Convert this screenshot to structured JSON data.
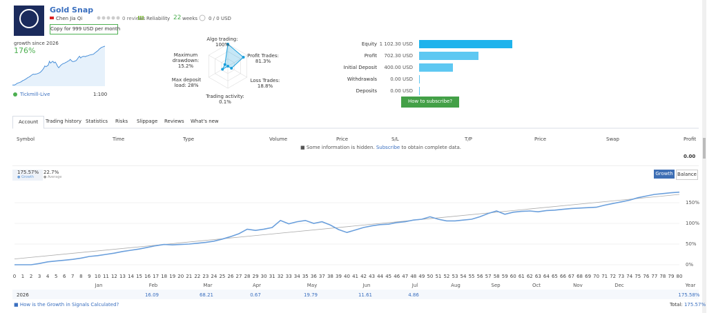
{
  "header": {
    "title": "Gold Snap",
    "author": "Chen Jia Qi",
    "reviews": "0 reviews",
    "reliability": "Reliability",
    "weeks_value": "22",
    "weeks_label": "weeks",
    "funds": "0 / 0 USD",
    "copy_button": "Copy for 999 USD per month"
  },
  "growth_summary": {
    "label": "growth since 2026",
    "value": "176%",
    "broker": "Tickmill-Live",
    "leverage": "1:100"
  },
  "radar": {
    "axes": [
      {
        "name": "Algo trading:",
        "value": 100,
        "value_label": "100%"
      },
      {
        "name": "Profit Trades:",
        "value": 81.3,
        "value_label": "81.3%"
      },
      {
        "name": "Loss Trades:",
        "value": 18.8,
        "value_label": "18.8%"
      },
      {
        "name": "Trading activity:",
        "value": 0.1,
        "value_label": "0.1%"
      },
      {
        "name": "Max deposit load:",
        "value": 28,
        "value_label": "28%"
      },
      {
        "name": "Maximum drawdown:",
        "value": 15.2,
        "value_label": "15.2%"
      }
    ]
  },
  "account": {
    "rows": [
      {
        "label": "Equity",
        "value": 1102.3,
        "value_label": "1 102.30 USD"
      },
      {
        "label": "Profit",
        "value": 702.3,
        "value_label": "702.30 USD"
      },
      {
        "label": "Initial Deposit",
        "value": 400,
        "value_label": "400.00 USD"
      },
      {
        "label": "Withdrawals",
        "value": 0,
        "value_label": "0.00 USD"
      },
      {
        "label": "Deposits",
        "value": 0,
        "value_label": "0.00 USD"
      }
    ],
    "button": "How to subscribe?"
  },
  "tabs": {
    "items": [
      "Account",
      "Trading history",
      "Statistics",
      "Risks",
      "Slippage",
      "Reviews",
      "What's new"
    ],
    "active": 0
  },
  "table": {
    "columns": [
      "Symbol",
      "Time",
      "Type",
      "Volume",
      "Price",
      "S/L",
      "T/P",
      "Price",
      "Swap",
      "Profit"
    ],
    "notice": "Some information is hidden.",
    "notice_link": "Subscribe",
    "notice_tail": "to obtain complete data.",
    "profit_total": "0.00"
  },
  "growth_chart": {
    "type": "line",
    "legend": {
      "growth_value": "175.57%",
      "average_value": "22.7%",
      "average_label": "Average"
    },
    "buttons": [
      "Growth",
      "Balance"
    ],
    "x": [
      0,
      1,
      2,
      3,
      4,
      5,
      6,
      7,
      8,
      9,
      10,
      11,
      12,
      13,
      14,
      15,
      16,
      17,
      18,
      19,
      20,
      21,
      22,
      23,
      24,
      25,
      26,
      27,
      28,
      29,
      30,
      31,
      32,
      33,
      34,
      35,
      36,
      37,
      38,
      39,
      40,
      41,
      42,
      43,
      44,
      45,
      46,
      47,
      48,
      49,
      50,
      51,
      52,
      53,
      54,
      55,
      56,
      57,
      58,
      59,
      60,
      61,
      62,
      63,
      64,
      65,
      66,
      67,
      68,
      69,
      70,
      71,
      72,
      73,
      74,
      75,
      76,
      77,
      78,
      79,
      80
    ],
    "xlim": [
      0,
      80
    ],
    "series": [
      {
        "name": "Growth",
        "color": "#6a9fdc",
        "values": [
          0,
          0,
          0,
          3,
          7,
          9,
          11,
          13,
          16,
          20,
          22,
          25,
          28,
          32,
          35,
          38,
          42,
          46,
          49,
          48,
          49,
          50,
          52,
          54,
          57,
          62,
          68,
          75,
          86,
          83,
          86,
          90,
          107,
          99,
          104,
          107,
          100,
          104,
          96,
          85,
          78,
          84,
          90,
          94,
          97,
          98,
          102,
          104,
          108,
          110,
          116,
          110,
          106,
          106,
          108,
          110,
          116,
          124,
          130,
          122,
          127,
          129,
          130,
          128,
          131,
          132,
          134,
          136,
          137,
          138,
          139,
          144,
          148,
          152,
          156,
          162,
          166,
          170,
          172,
          174,
          175.57
        ]
      }
    ],
    "trend": {
      "color": "#aaaaaa",
      "values": [
        14,
        170
      ]
    },
    "ylim": [
      -15,
      185
    ],
    "yticks": [
      {
        "value": 0,
        "label": "0%"
      },
      {
        "value": 50,
        "label": "50%"
      },
      {
        "value": 100,
        "label": "100%"
      },
      {
        "value": 150,
        "label": "150%"
      }
    ],
    "months": {
      "year": "2026",
      "names": [
        "Jan",
        "Feb",
        "Mar",
        "Apr",
        "May",
        "Jun",
        "Jul",
        "Aug",
        "Sep",
        "Oct",
        "Nov",
        "Dec",
        "Year"
      ],
      "values": [
        null,
        "16.09",
        "68.21",
        "0.67",
        "19.79",
        "11.61",
        "4.86",
        null,
        null,
        null,
        null,
        null,
        "175.58%"
      ]
    }
  },
  "footer": {
    "link": "How is the Growth in Signals Calculated?",
    "total_label": "Total:",
    "total_value": "175.57%"
  }
}
